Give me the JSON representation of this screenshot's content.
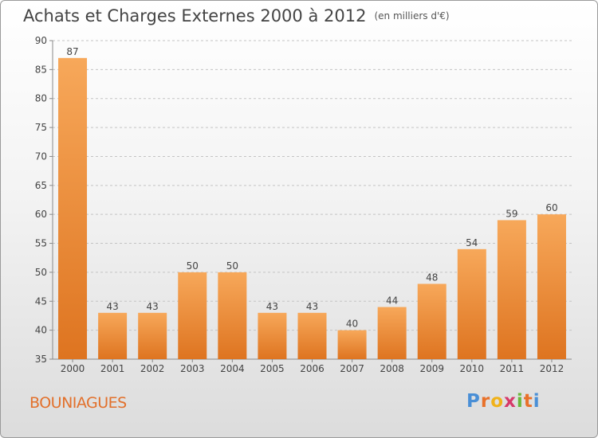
{
  "title": "Achats et Charges Externes 2000 à 2012",
  "subtitle": "(en milliers d'€)",
  "commune": "BOUNIAGUES",
  "logo": {
    "letters": [
      "P",
      "r",
      "o",
      "x",
      "i",
      "t",
      "i"
    ],
    "colors": [
      "#4a8fd6",
      "#e8712a",
      "#f0b21a",
      "#d63a6a",
      "#6ab83a",
      "#e8712a",
      "#4a8fd6"
    ]
  },
  "colors": {
    "bar_light": "#f7a85a",
    "bar_dark": "#de7420",
    "title": "#444444",
    "commune": "#e2702b"
  },
  "chart_data": {
    "type": "bar",
    "categories": [
      "2000",
      "2001",
      "2002",
      "2003",
      "2004",
      "2005",
      "2006",
      "2007",
      "2008",
      "2009",
      "2010",
      "2011",
      "2012"
    ],
    "values": [
      87,
      43,
      43,
      50,
      50,
      43,
      43,
      40,
      44,
      48,
      54,
      59,
      60
    ],
    "ylim": [
      35,
      90
    ],
    "yticks": [
      35,
      40,
      45,
      50,
      55,
      60,
      65,
      70,
      75,
      80,
      85,
      90
    ],
    "grid": "dashed horizontal",
    "legend": "none"
  }
}
